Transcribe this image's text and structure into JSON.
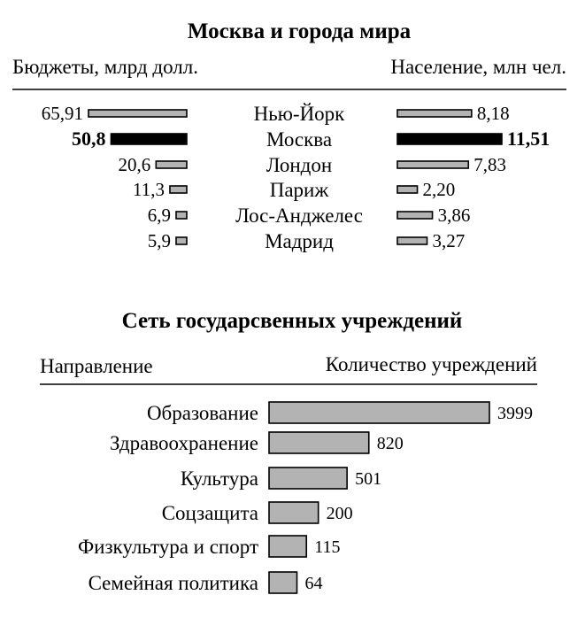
{
  "chart_data": [
    {
      "type": "bar",
      "title": "Москва и города мира",
      "left_header": "Бюджеты, млрд долл.",
      "right_header": "Население, млн чел.",
      "categories": [
        "Нью-Йорк",
        "Москва",
        "Лондон",
        "Париж",
        "Лос-Анджелес",
        "Мадрид"
      ],
      "highlight": "Москва",
      "series": [
        {
          "values": [
            65.91,
            50.8,
            20.6,
            11.3,
            6.9,
            5.9
          ],
          "labels": [
            "65,91",
            "50,8",
            "20,6",
            "11,3",
            "6,9",
            "5,9"
          ]
        },
        {
          "values": [
            8.18,
            11.51,
            7.83,
            2.2,
            3.86,
            3.27
          ],
          "labels": [
            "8,18",
            "11,51",
            "7,83",
            "2,20",
            "3,86",
            "3,27"
          ]
        }
      ],
      "colors": {
        "bar": "#b3b3b3",
        "highlight": "#000000",
        "outline": "#000000"
      }
    },
    {
      "type": "bar",
      "orientation": "horizontal",
      "title": "Сеть государсвенных учреждений",
      "xlabel": "Количество учреждений",
      "ylabel": "Направление",
      "categories": [
        "Образование",
        "Здравоохранение",
        "Культура",
        "Соцзащита",
        "Физкультура и спорт",
        "Семейная политика"
      ],
      "values": [
        3999,
        820,
        501,
        200,
        115,
        64
      ],
      "labels": [
        "3999",
        "820",
        "501",
        "200",
        "115",
        "64"
      ],
      "colors": {
        "bar": "#b3b3b3",
        "outline": "#000000"
      }
    }
  ]
}
